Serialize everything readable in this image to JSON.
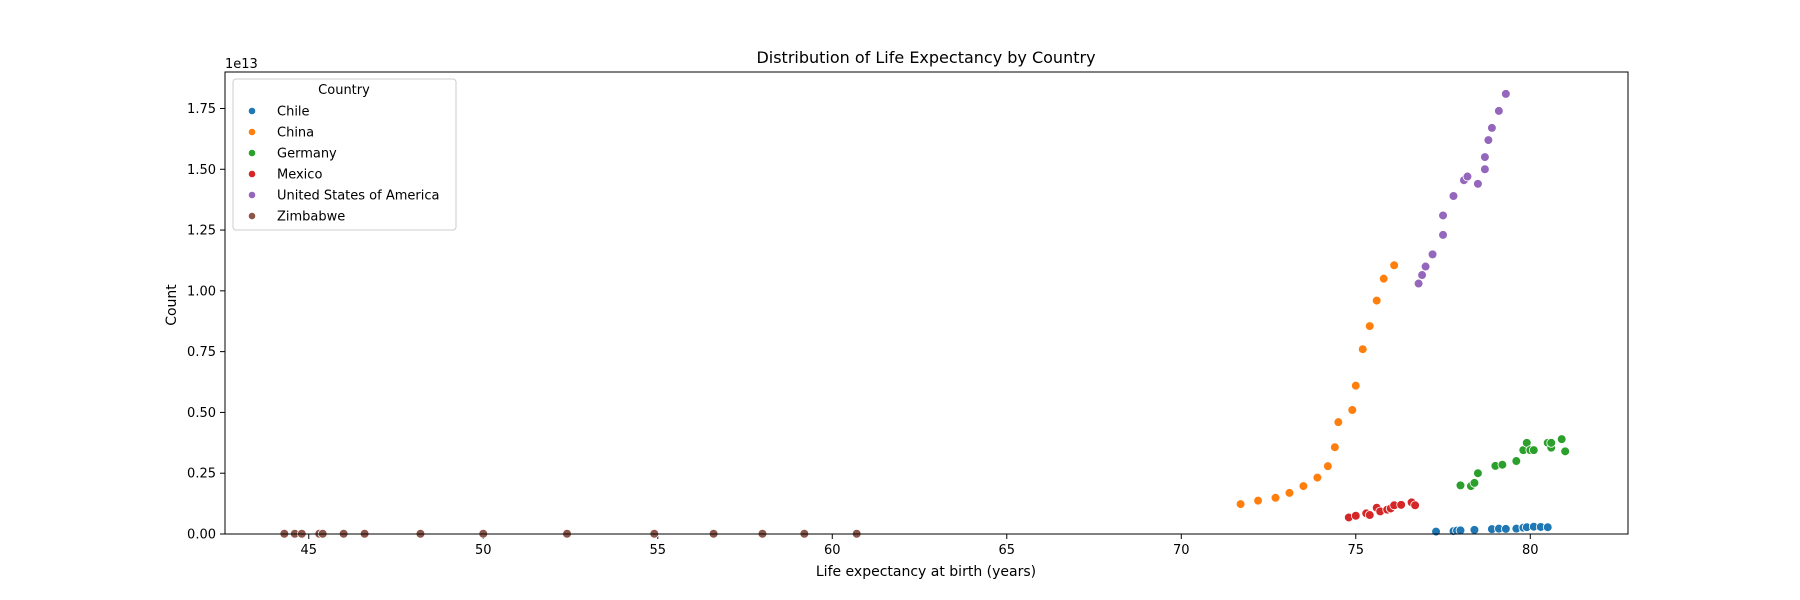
{
  "chart_data": {
    "type": "scatter",
    "title": "Distribution of Life Expectancy by Country",
    "xlabel": "Life expectancy at birth (years)",
    "ylabel": "Count",
    "y_offset_text": "1e13",
    "y_multiplier": 10000000000000.0,
    "xlim": [
      42.6,
      82.8
    ],
    "ylim": [
      0,
      1.9
    ],
    "xticks": [
      45,
      50,
      55,
      60,
      65,
      70,
      75,
      80
    ],
    "yticks": [
      0,
      0.25,
      0.5,
      0.75,
      1.0,
      1.25,
      1.5,
      1.75
    ],
    "ytick_labels": [
      "0.00",
      "0.25",
      "0.50",
      "0.75",
      "1.00",
      "1.25",
      "1.50",
      "1.75"
    ],
    "grid": false,
    "legend": {
      "title": "Country",
      "placement": "top-left"
    },
    "series": [
      {
        "name": "Chile",
        "color": "#1f77b4",
        "points": [
          [
            77.3,
            0.01
          ],
          [
            77.8,
            0.012
          ],
          [
            77.9,
            0.014
          ],
          [
            78.0,
            0.015
          ],
          [
            78.4,
            0.017
          ],
          [
            78.9,
            0.02
          ],
          [
            79.1,
            0.022
          ],
          [
            79.3,
            0.021
          ],
          [
            79.6,
            0.022
          ],
          [
            79.8,
            0.026
          ],
          [
            79.9,
            0.028
          ],
          [
            80.1,
            0.03
          ],
          [
            80.3,
            0.029
          ],
          [
            80.5,
            0.028
          ]
        ]
      },
      {
        "name": "China",
        "color": "#ff7f0e",
        "points": [
          [
            71.7,
            0.123
          ],
          [
            72.2,
            0.137
          ],
          [
            72.7,
            0.149
          ],
          [
            73.1,
            0.169
          ],
          [
            73.5,
            0.197
          ],
          [
            73.9,
            0.232
          ],
          [
            74.2,
            0.279
          ],
          [
            74.4,
            0.357
          ],
          [
            74.5,
            0.46
          ],
          [
            74.9,
            0.51
          ],
          [
            75.0,
            0.61
          ],
          [
            75.2,
            0.76
          ],
          [
            75.4,
            0.855
          ],
          [
            75.6,
            0.96
          ],
          [
            75.8,
            1.05
          ],
          [
            76.1,
            1.105
          ]
        ]
      },
      {
        "name": "Germany",
        "color": "#2ca02c",
        "points": [
          [
            78.0,
            0.2
          ],
          [
            78.3,
            0.197
          ],
          [
            78.4,
            0.21
          ],
          [
            78.5,
            0.25
          ],
          [
            79.0,
            0.28
          ],
          [
            79.2,
            0.285
          ],
          [
            79.6,
            0.3
          ],
          [
            79.8,
            0.345
          ],
          [
            79.9,
            0.375
          ],
          [
            80.0,
            0.345
          ],
          [
            80.1,
            0.345
          ],
          [
            80.5,
            0.375
          ],
          [
            80.6,
            0.355
          ],
          [
            80.6,
            0.375
          ],
          [
            80.9,
            0.39
          ],
          [
            81.0,
            0.34
          ]
        ]
      },
      {
        "name": "Mexico",
        "color": "#d62728",
        "points": [
          [
            74.8,
            0.068
          ],
          [
            75.0,
            0.075
          ],
          [
            75.3,
            0.085
          ],
          [
            75.4,
            0.078
          ],
          [
            75.6,
            0.108
          ],
          [
            75.7,
            0.093
          ],
          [
            75.9,
            0.1
          ],
          [
            76.0,
            0.105
          ],
          [
            76.1,
            0.118
          ],
          [
            76.3,
            0.12
          ],
          [
            76.6,
            0.13
          ],
          [
            76.7,
            0.118
          ]
        ]
      },
      {
        "name": "United States of America",
        "color": "#9467bd",
        "points": [
          [
            76.8,
            1.03
          ],
          [
            76.9,
            1.065
          ],
          [
            77.0,
            1.1
          ],
          [
            77.2,
            1.15
          ],
          [
            77.5,
            1.23
          ],
          [
            77.5,
            1.31
          ],
          [
            77.8,
            1.39
          ],
          [
            78.1,
            1.455
          ],
          [
            78.2,
            1.47
          ],
          [
            78.5,
            1.44
          ],
          [
            78.7,
            1.5
          ],
          [
            78.7,
            1.55
          ],
          [
            78.8,
            1.62
          ],
          [
            78.9,
            1.67
          ],
          [
            79.1,
            1.74
          ],
          [
            79.3,
            1.81
          ]
        ]
      },
      {
        "name": "Zimbabwe",
        "color": "#8c564b",
        "points": [
          [
            44.3,
            0.001
          ],
          [
            44.6,
            0.001
          ],
          [
            44.8,
            0.001
          ],
          [
            45.3,
            0.001
          ],
          [
            45.4,
            0.001
          ],
          [
            46.0,
            0.001
          ],
          [
            46.6,
            0.001
          ],
          [
            48.2,
            0.001
          ],
          [
            50.0,
            0.001
          ],
          [
            52.4,
            0.001
          ],
          [
            54.9,
            0.001
          ],
          [
            56.6,
            0.001
          ],
          [
            58.0,
            0.001
          ],
          [
            59.2,
            0.001
          ],
          [
            60.7,
            0.001
          ]
        ]
      }
    ]
  }
}
